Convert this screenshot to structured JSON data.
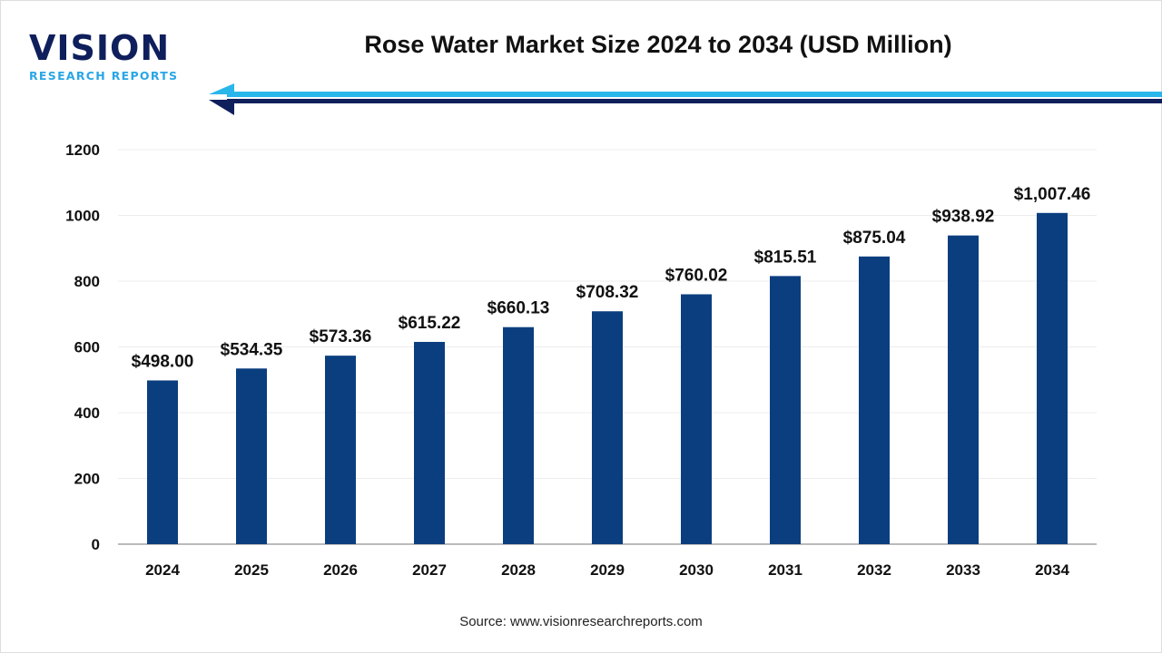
{
  "logo": {
    "main": "VISION",
    "sub": "RESEARCH REPORTS"
  },
  "source": "Source: www.visionresearchreports.com",
  "colors": {
    "bar": "#0b3e7f",
    "arrow_light": "#29b6ea",
    "arrow_dark": "#0f1f5c"
  },
  "chart_data": {
    "type": "bar",
    "title": "Rose Water Market Size 2024 to 2034 (USD Million)",
    "categories": [
      "2024",
      "2025",
      "2026",
      "2027",
      "2028",
      "2029",
      "2030",
      "2031",
      "2032",
      "2033",
      "2034"
    ],
    "values": [
      498.0,
      534.35,
      573.36,
      615.22,
      660.13,
      708.32,
      760.02,
      815.51,
      875.04,
      938.92,
      1007.46
    ],
    "data_labels": [
      "$498.00",
      "$534.35",
      "$573.36",
      "$615.22",
      "$660.13",
      "$708.32",
      "$760.02",
      "$815.51",
      "$875.04",
      "$938.92",
      "$1,007.46"
    ],
    "yticks": [
      "0",
      "200",
      "400",
      "600",
      "800",
      "1000",
      "1200"
    ],
    "ylim": [
      0,
      1200
    ],
    "grid": true,
    "xlabel": "",
    "ylabel": ""
  }
}
